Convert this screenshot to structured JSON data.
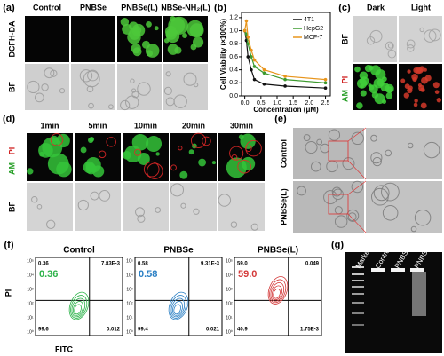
{
  "chart_data": {
    "type": "line",
    "label": "(b)",
    "y_label": "Cell Viability (×100%)",
    "x_label": "Concentration (μM)",
    "x": [
      0,
      0.05,
      0.1,
      0.2,
      0.3,
      0.6,
      1.25,
      2.5
    ],
    "series": [
      {
        "name": "4T1",
        "color": "#111111",
        "values": [
          1.0,
          0.85,
          0.6,
          0.4,
          0.25,
          0.18,
          0.15,
          0.12
        ]
      },
      {
        "name": "HepG2",
        "color": "#3c9a2e",
        "values": [
          1.0,
          0.95,
          0.8,
          0.6,
          0.45,
          0.35,
          0.25,
          0.2
        ]
      },
      {
        "name": "MCF-7",
        "color": "#e8951c",
        "values": [
          1.0,
          1.15,
          0.9,
          0.7,
          0.55,
          0.4,
          0.3,
          0.25
        ]
      }
    ],
    "xlim": [
      -0.1,
      2.65
    ],
    "ylim": [
      0,
      1.28
    ],
    "xticks": [
      {
        "value": 0,
        "label": "0.0"
      },
      0.5,
      {
        "value": 1,
        "label": "1.0"
      },
      1.5,
      {
        "value": 2,
        "label": "2.0"
      },
      2.5
    ],
    "yticks": [
      {
        "value": 0,
        "label": "0.0"
      },
      0.2,
      0.4,
      0.6,
      0.8,
      {
        "value": 1,
        "label": "1.0"
      },
      1.2
    ],
    "legend": "upper right"
  },
  "panels": {
    "a": {
      "label": "(a)",
      "columns": [
        "Control",
        "PNBSe",
        "PNBSe(L)",
        "NBSe-NH₂(L)"
      ],
      "rows": [
        "DCFH-DA",
        "BF"
      ]
    },
    "c": {
      "label": "(c)",
      "columns": [
        "Dark",
        "Light"
      ],
      "row_bf": "BF",
      "stain_am": "AM",
      "stain_pi": "PI"
    },
    "d": {
      "label": "(d)",
      "columns": [
        "1min",
        "5min",
        "10min",
        "20min",
        "30min"
      ],
      "stain_am": "AM",
      "stain_pi": "PI",
      "row_bf": "BF"
    },
    "e": {
      "label": "(e)",
      "rows": [
        "Control",
        "PNBSe(L)"
      ]
    },
    "f": {
      "label": "(f)",
      "y_label": "PI",
      "x_label": "FITC",
      "log_ticks": [
        "10⁰",
        "10¹",
        "10²",
        "10³",
        "10⁴",
        "10⁵"
      ],
      "plots": [
        {
          "title": "Control",
          "highlight": "0.36",
          "color": "#2db34a",
          "quadrants": [
            "0.36",
            "7.83E-3",
            "99.6",
            "0.012"
          ]
        },
        {
          "title": "PNBSe",
          "highlight": "0.58",
          "color": "#2a7fc4",
          "quadrants": [
            "0.58",
            "9.31E-3",
            "99.4",
            "0.021"
          ]
        },
        {
          "title": "PNBSe(L)",
          "highlight": "59.0",
          "color": "#d43a3a",
          "quadrants": [
            "59.0",
            "0.049",
            "40.9",
            "1.75E-3"
          ]
        }
      ]
    },
    "g": {
      "label": "(g)",
      "lanes": [
        "Marker",
        "Control",
        "PNBSe",
        "PNBSe (L)"
      ]
    }
  }
}
